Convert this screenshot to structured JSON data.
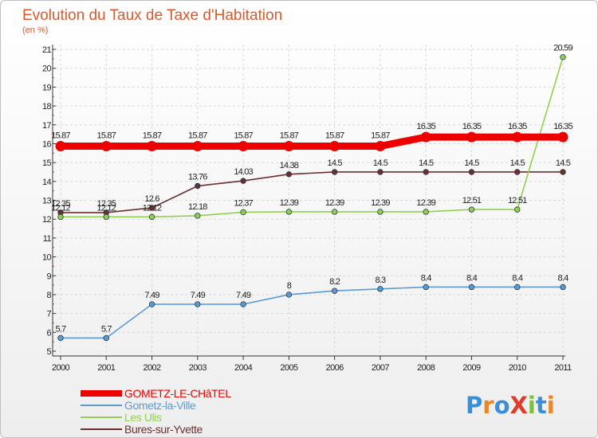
{
  "chart_data": {
    "type": "line",
    "title": "Evolution du Taux de Taxe d'Habitation",
    "subtitle": "(en %)",
    "x": [
      "2000",
      "2001",
      "2002",
      "2003",
      "2004",
      "2005",
      "2006",
      "2007",
      "2008",
      "2009",
      "2010",
      "2011"
    ],
    "ylim": [
      5,
      21
    ],
    "yticks": [
      5,
      6,
      7,
      8,
      9,
      10,
      11,
      12,
      13,
      14,
      15,
      16,
      17,
      18,
      19,
      20,
      21
    ],
    "grid": true,
    "legend_position": "bottom-left",
    "series": [
      {
        "name": "GOMETZ-LE-CHâTEL",
        "color": "#ee0000",
        "bold": true,
        "values": [
          15.87,
          15.87,
          15.87,
          15.87,
          15.87,
          15.87,
          15.87,
          15.87,
          16.35,
          16.35,
          16.35,
          16.35
        ],
        "labels": [
          "15.87",
          "15.87",
          "15.87",
          "15.87",
          "15.87",
          "15.87",
          "15.87",
          "15.87",
          "16.35",
          "16.35",
          "16.35",
          "16.35"
        ]
      },
      {
        "name": "Gometz-la-Ville",
        "color": "#5b9bd5",
        "values": [
          5.7,
          5.7,
          7.49,
          7.49,
          7.49,
          8,
          8.2,
          8.3,
          8.4,
          8.4,
          8.4,
          8.4
        ],
        "labels": [
          "5.7",
          "5.7",
          "7.49",
          "7.49",
          "7.49",
          "8",
          "8.2",
          "8.3",
          "8.4",
          "8.4",
          "8.4",
          "8.4"
        ]
      },
      {
        "name": "Les Ulis",
        "color": "#8fd14f",
        "values": [
          12.12,
          12.12,
          12.12,
          12.18,
          12.37,
          12.39,
          12.39,
          12.39,
          12.39,
          12.51,
          12.51,
          20.59
        ],
        "labels": [
          "12.12",
          "12.12",
          "12.12",
          "12.18",
          "12.37",
          "12.39",
          "12.39",
          "12.39",
          "12.39",
          "12.51",
          "12.51",
          "20.59"
        ]
      },
      {
        "name": "Bures-sur-Yvette",
        "color": "#6b2f2f",
        "values": [
          12.35,
          12.35,
          12.6,
          13.76,
          14.03,
          14.38,
          14.5,
          14.5,
          14.5,
          14.5,
          14.5,
          14.5
        ],
        "labels": [
          "12.35",
          "12.35",
          "12.6",
          "13.76",
          "14.03",
          "14.38",
          "14.5",
          "14.5",
          "14.5",
          "14.5",
          "14.5",
          "14.5"
        ]
      }
    ]
  },
  "logo": {
    "text": "ProXiti"
  }
}
